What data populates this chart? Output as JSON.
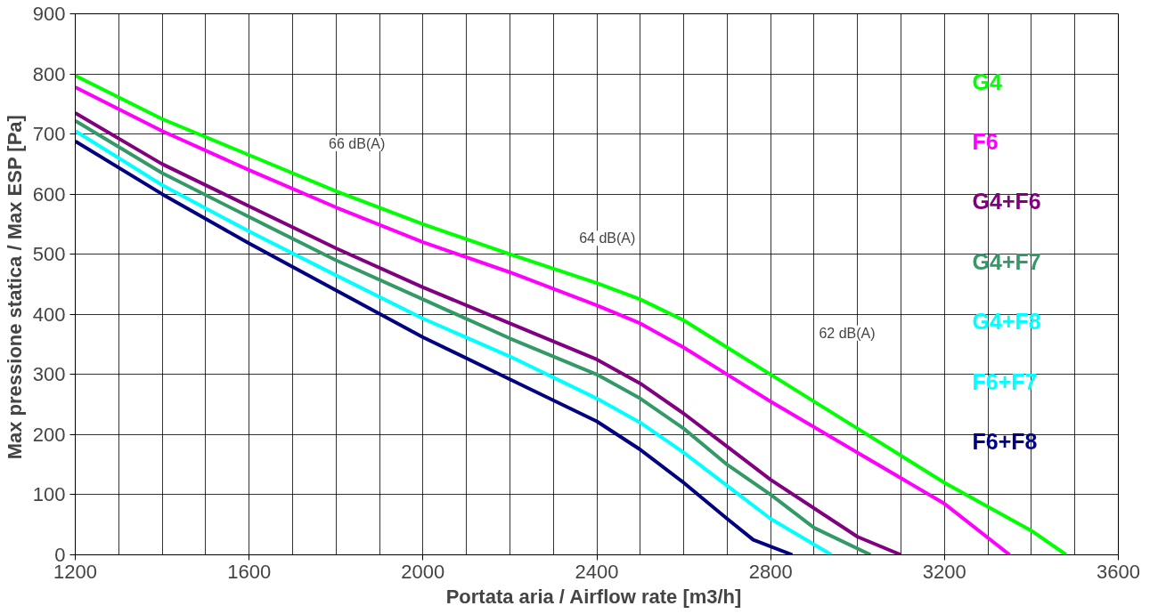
{
  "chart_data": {
    "type": "line",
    "xlabel": "Portata aria / Airflow rate  [m3/h]",
    "ylabel": "Max pressione statica / Max ESP  [Pa]",
    "xlim": [
      1200,
      3600
    ],
    "xticks": [
      1200,
      1600,
      2000,
      2400,
      2800,
      3200,
      3600
    ],
    "ylim": [
      0,
      900
    ],
    "yticks": [
      0,
      100,
      200,
      300,
      400,
      500,
      600,
      700,
      800,
      900
    ],
    "grid": true,
    "legend": "top right",
    "marker": "none",
    "line_style": "solid",
    "annotations": [
      "66 dB(A)",
      "64 dB(A)",
      "62 dB(A)"
    ],
    "series": [
      {
        "name": "G4",
        "color": "#00ff00",
        "x": [
          1200,
          1400,
          1600,
          1800,
          2000,
          2200,
          2400,
          2500,
          2600,
          2700,
          2800,
          3000,
          3200,
          3400,
          3480
        ],
        "values": [
          797,
          725,
          665,
          605,
          550,
          500,
          452,
          425,
          390,
          345,
          300,
          210,
          120,
          40,
          0
        ]
      },
      {
        "name": "F6",
        "color": "#ff00ff",
        "x": [
          1200,
          1400,
          1600,
          1800,
          2000,
          2200,
          2400,
          2500,
          2600,
          2700,
          2800,
          3000,
          3200,
          3350
        ],
        "values": [
          778,
          705,
          640,
          578,
          520,
          470,
          415,
          385,
          345,
          300,
          255,
          170,
          85,
          0
        ]
      },
      {
        "name": "G4+F6",
        "color": "#800080",
        "x": [
          1200,
          1400,
          1600,
          1800,
          2000,
          2200,
          2400,
          2500,
          2600,
          2700,
          2800,
          3000,
          3100
        ],
        "values": [
          735,
          650,
          580,
          510,
          445,
          385,
          325,
          285,
          235,
          180,
          125,
          30,
          0
        ]
      },
      {
        "name": "G4+F7",
        "color": "#339966",
        "x": [
          1200,
          1400,
          1600,
          1800,
          2000,
          2200,
          2400,
          2500,
          2600,
          2700,
          2800,
          2900,
          3030
        ],
        "values": [
          722,
          635,
          562,
          490,
          425,
          360,
          300,
          260,
          210,
          150,
          100,
          45,
          0
        ]
      },
      {
        "name": "G4+F8",
        "color": "#00ffff",
        "x": [
          1200,
          1400,
          1600,
          1800,
          2000,
          2200,
          2400,
          2500,
          2600,
          2700,
          2800,
          2940
        ],
        "values": [
          705,
          615,
          538,
          465,
          393,
          330,
          260,
          220,
          170,
          115,
          60,
          0
        ]
      },
      {
        "name": "F6+F7",
        "color": "#00ffff",
        "values": [
          null
        ]
      },
      {
        "name": "F6+F8",
        "color": "#000080",
        "x": [
          1200,
          1400,
          1600,
          1800,
          2000,
          2200,
          2400,
          2500,
          2600,
          2700,
          2760,
          2850
        ],
        "values": [
          688,
          600,
          518,
          440,
          362,
          292,
          222,
          175,
          120,
          60,
          25,
          0
        ]
      }
    ]
  }
}
